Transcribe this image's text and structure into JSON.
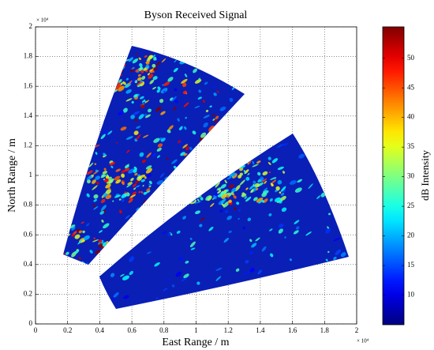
{
  "chart_data": {
    "type": "image",
    "title": "Byson Received Signal",
    "x_label": "East Range / m",
    "y_label": "North Range / m",
    "x_multiplier": "× 10⁴",
    "y_multiplier": "× 10⁴",
    "xlim": [
      0,
      2
    ],
    "ylim": [
      0,
      2
    ],
    "xticks": [
      0,
      0.2,
      0.4,
      0.6,
      0.8,
      1,
      1.2,
      1.4,
      1.6,
      1.8,
      2
    ],
    "yticks": [
      0,
      0.2,
      0.4,
      0.6,
      0.8,
      1,
      1.2,
      1.4,
      1.6,
      1.8,
      2
    ],
    "grid": true,
    "colorbar": {
      "label": "dB Intensity",
      "colormap": "jet",
      "clim": [
        5,
        55.3
      ],
      "ticks": [
        10,
        15,
        20,
        25,
        30,
        35,
        40,
        45,
        50
      ]
    }
  }
}
